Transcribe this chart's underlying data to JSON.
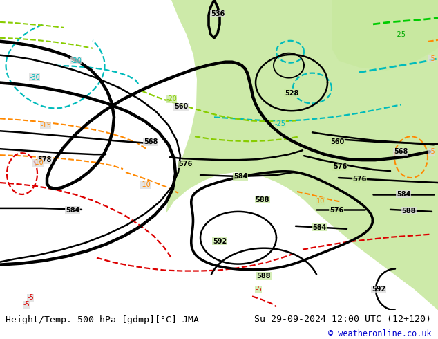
{
  "title_left": "Height/Temp. 500 hPa [gdmp][°C] JMA",
  "title_right": "Su 29-09-2024 12:00 UTC (12+120)",
  "copyright": "© weatheronline.co.uk",
  "bg_map_color": "#e0e0e0",
  "green_fill": "#c8e8a0",
  "gray_land": "#b8b8b8",
  "white_ocean": "#e8e8e8",
  "bottom_bar_color": "#ffffff",
  "title_fontsize": 9.5,
  "copyright_fontsize": 8.5,
  "copyright_color": "#0000cc",
  "figwidth": 6.34,
  "figheight": 4.9,
  "dpi": 100
}
